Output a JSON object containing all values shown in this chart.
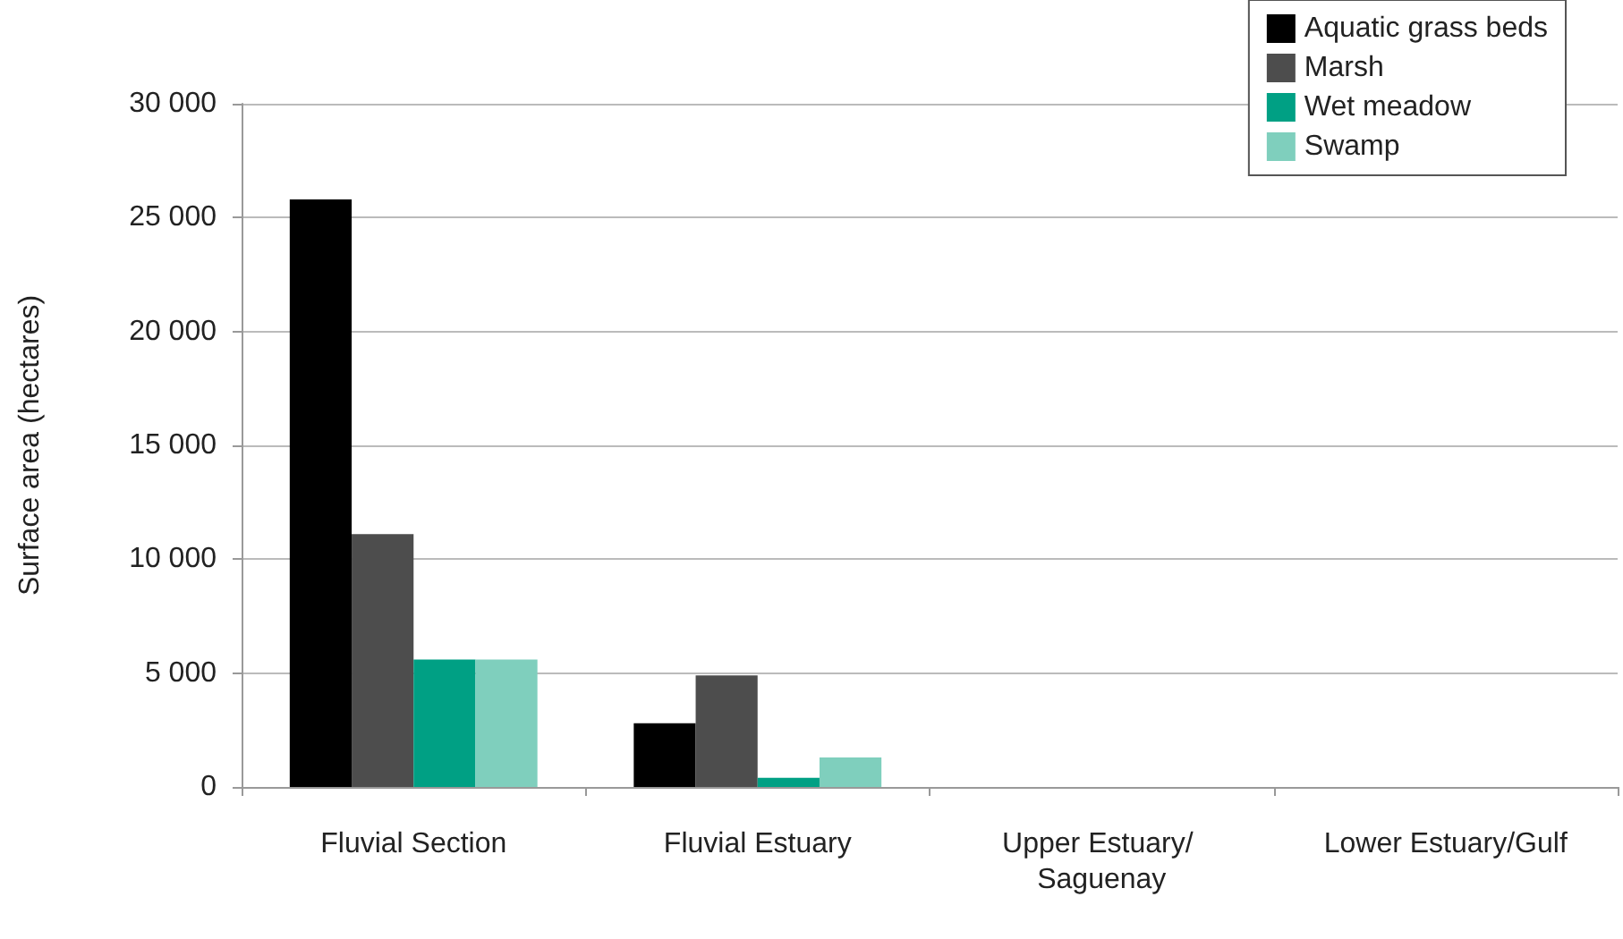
{
  "chart_data": {
    "type": "bar",
    "ylabel": "Surface area (hectares)",
    "categories": [
      "Fluvial Section",
      "Fluvial Estuary",
      "Upper Estuary/ Saguenay",
      "Lower Estuary/Gulf"
    ],
    "series": [
      {
        "name": "Aquatic grass beds",
        "color": "#000000",
        "values": [
          25800,
          2800,
          0,
          0
        ]
      },
      {
        "name": "Marsh",
        "color": "#4d4d4d",
        "values": [
          11100,
          4900,
          0,
          0
        ]
      },
      {
        "name": "Wet meadow",
        "color": "#00a084",
        "values": [
          5600,
          400,
          0,
          0
        ]
      },
      {
        "name": "Swamp",
        "color": "#7fcfbd",
        "values": [
          5600,
          1300,
          0,
          0
        ]
      }
    ],
    "ylim": [
      0,
      30000
    ],
    "yticks": [
      {
        "value": 0,
        "label": "0"
      },
      {
        "value": 5000,
        "label": "5 000"
      },
      {
        "value": 10000,
        "label": "10 000"
      },
      {
        "value": 15000,
        "label": "15 000"
      },
      {
        "value": 20000,
        "label": "20 000"
      },
      {
        "value": 25000,
        "label": "25 000"
      },
      {
        "value": 30000,
        "label": "30 000"
      }
    ],
    "grid": "y",
    "legend": "top right"
  }
}
